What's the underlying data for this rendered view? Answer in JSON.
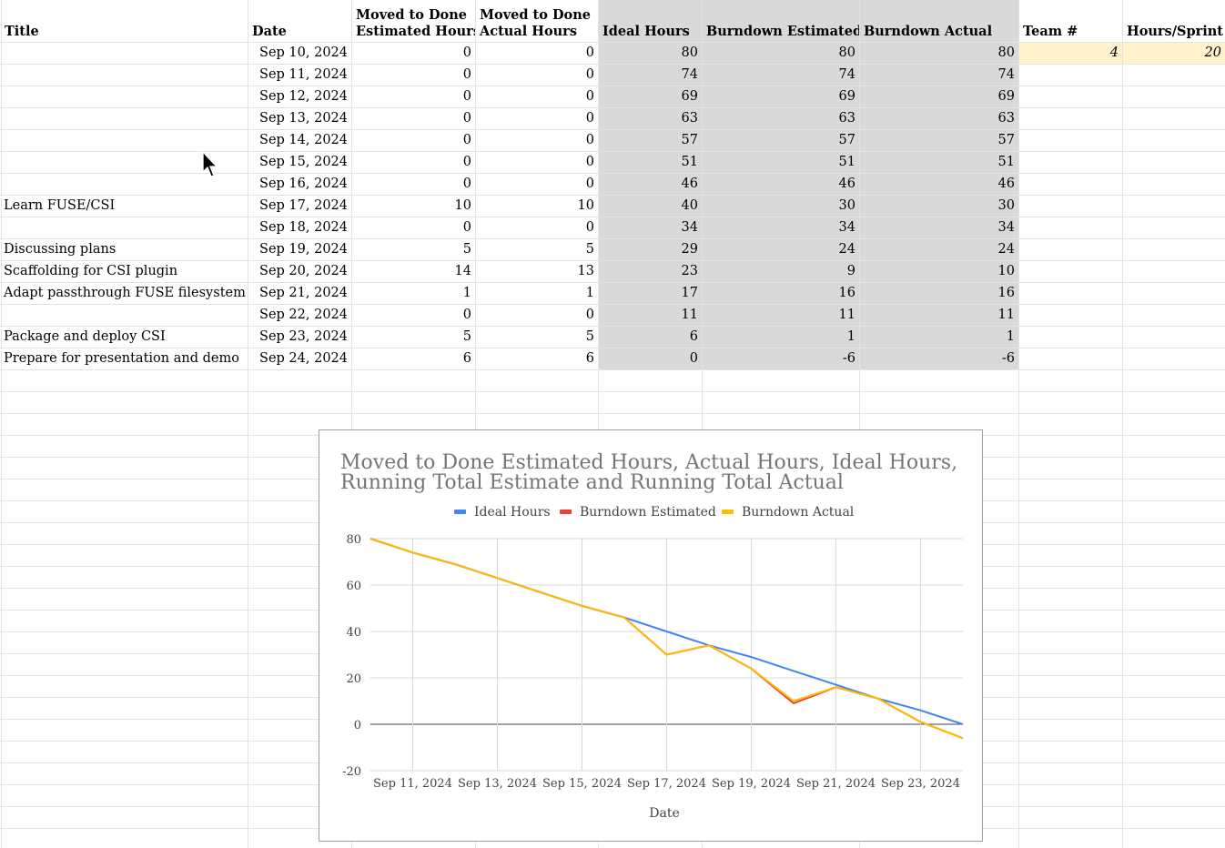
{
  "headers": {
    "title": "Title",
    "date": "Date",
    "est_line1": "Moved to Done",
    "est_line2": "Estimated Hours",
    "act_line1": "Moved to Done",
    "act_line2": "Actual Hours",
    "ideal": "Ideal Hours",
    "burn_est": "Burndown Estimated",
    "burn_act": "Burndown Actual",
    "team": "Team #",
    "hours_sprint": "Hours/Sprint"
  },
  "team_value": "4",
  "hours_sprint_value": "20",
  "rows": [
    {
      "title": "",
      "date": "Sep 10, 2024",
      "est": "0",
      "act": "0",
      "ideal": "80",
      "burn_est": "80",
      "burn_act": "80"
    },
    {
      "title": "",
      "date": "Sep 11, 2024",
      "est": "0",
      "act": "0",
      "ideal": "74",
      "burn_est": "74",
      "burn_act": "74"
    },
    {
      "title": "",
      "date": "Sep 12, 2024",
      "est": "0",
      "act": "0",
      "ideal": "69",
      "burn_est": "69",
      "burn_act": "69"
    },
    {
      "title": "",
      "date": "Sep 13, 2024",
      "est": "0",
      "act": "0",
      "ideal": "63",
      "burn_est": "63",
      "burn_act": "63"
    },
    {
      "title": "",
      "date": "Sep 14, 2024",
      "est": "0",
      "act": "0",
      "ideal": "57",
      "burn_est": "57",
      "burn_act": "57"
    },
    {
      "title": "",
      "date": "Sep 15, 2024",
      "est": "0",
      "act": "0",
      "ideal": "51",
      "burn_est": "51",
      "burn_act": "51"
    },
    {
      "title": "",
      "date": "Sep 16, 2024",
      "est": "0",
      "act": "0",
      "ideal": "46",
      "burn_est": "46",
      "burn_act": "46"
    },
    {
      "title": "Learn FUSE/CSI",
      "date": "Sep 17, 2024",
      "est": "10",
      "act": "10",
      "ideal": "40",
      "burn_est": "30",
      "burn_act": "30"
    },
    {
      "title": "",
      "date": "Sep 18, 2024",
      "est": "0",
      "act": "0",
      "ideal": "34",
      "burn_est": "34",
      "burn_act": "34"
    },
    {
      "title": "Discussing plans",
      "date": "Sep 19, 2024",
      "est": "5",
      "act": "5",
      "ideal": "29",
      "burn_est": "24",
      "burn_act": "24"
    },
    {
      "title": "Scaffolding for CSI plugin",
      "date": "Sep 20, 2024",
      "est": "14",
      "act": "13",
      "ideal": "23",
      "burn_est": "9",
      "burn_act": "10"
    },
    {
      "title": "Adapt passthrough FUSE filesystem",
      "date": "Sep 21, 2024",
      "est": "1",
      "act": "1",
      "ideal": "17",
      "burn_est": "16",
      "burn_act": "16"
    },
    {
      "title": "",
      "date": "Sep 22, 2024",
      "est": "0",
      "act": "0",
      "ideal": "11",
      "burn_est": "11",
      "burn_act": "11"
    },
    {
      "title": "Package and deploy CSI",
      "date": "Sep 23, 2024",
      "est": "5",
      "act": "5",
      "ideal": "6",
      "burn_est": "1",
      "burn_act": "1"
    },
    {
      "title": "Prepare for presentation and demo",
      "date": "Sep 24, 2024",
      "est": "6",
      "act": "6",
      "ideal": "0",
      "burn_est": "-6",
      "burn_act": "-6"
    }
  ],
  "chart_data": {
    "type": "line",
    "title_line1": "Moved to Done Estimated Hours, Actual Hours, Ideal Hours,",
    "title_line2": "Running Total Estimate and Running Total Actual",
    "xlabel": "Date",
    "ylabel": "",
    "ylim": [
      -20,
      80
    ],
    "yticks": [
      -20,
      0,
      20,
      40,
      60,
      80
    ],
    "grid": true,
    "legend_position": "top",
    "x": [
      "Sep 10, 2024",
      "Sep 11, 2024",
      "Sep 12, 2024",
      "Sep 13, 2024",
      "Sep 14, 2024",
      "Sep 15, 2024",
      "Sep 16, 2024",
      "Sep 17, 2024",
      "Sep 18, 2024",
      "Sep 19, 2024",
      "Sep 20, 2024",
      "Sep 21, 2024",
      "Sep 22, 2024",
      "Sep 23, 2024",
      "Sep 24, 2024"
    ],
    "xtick_labels": [
      "Sep 11, 2024",
      "Sep 13, 2024",
      "Sep 15, 2024",
      "Sep 17, 2024",
      "Sep 19, 2024",
      "Sep 21, 2024",
      "Sep 23, 2024"
    ],
    "xtick_dates": [
      "Sep 11, 2024",
      "Sep 13, 2024",
      "Sep 15, 2024",
      "Sep 17, 2024",
      "Sep 19, 2024",
      "Sep 21, 2024",
      "Sep 23, 2024"
    ],
    "series": [
      {
        "name": "Ideal Hours",
        "color": "#4285f4",
        "values": [
          80,
          74,
          69,
          63,
          57,
          51,
          46,
          40,
          34,
          29,
          23,
          17,
          11,
          6,
          0
        ]
      },
      {
        "name": "Burndown Estimated",
        "color": "#ea4335",
        "values": [
          80,
          74,
          69,
          63,
          57,
          51,
          46,
          30,
          34,
          24,
          9,
          16,
          11,
          1,
          -6
        ]
      },
      {
        "name": "Burndown Actual",
        "color": "#fbbc04",
        "values": [
          80,
          74,
          69,
          63,
          57,
          51,
          46,
          30,
          34,
          24,
          10,
          16,
          11,
          1,
          -6
        ]
      }
    ]
  }
}
